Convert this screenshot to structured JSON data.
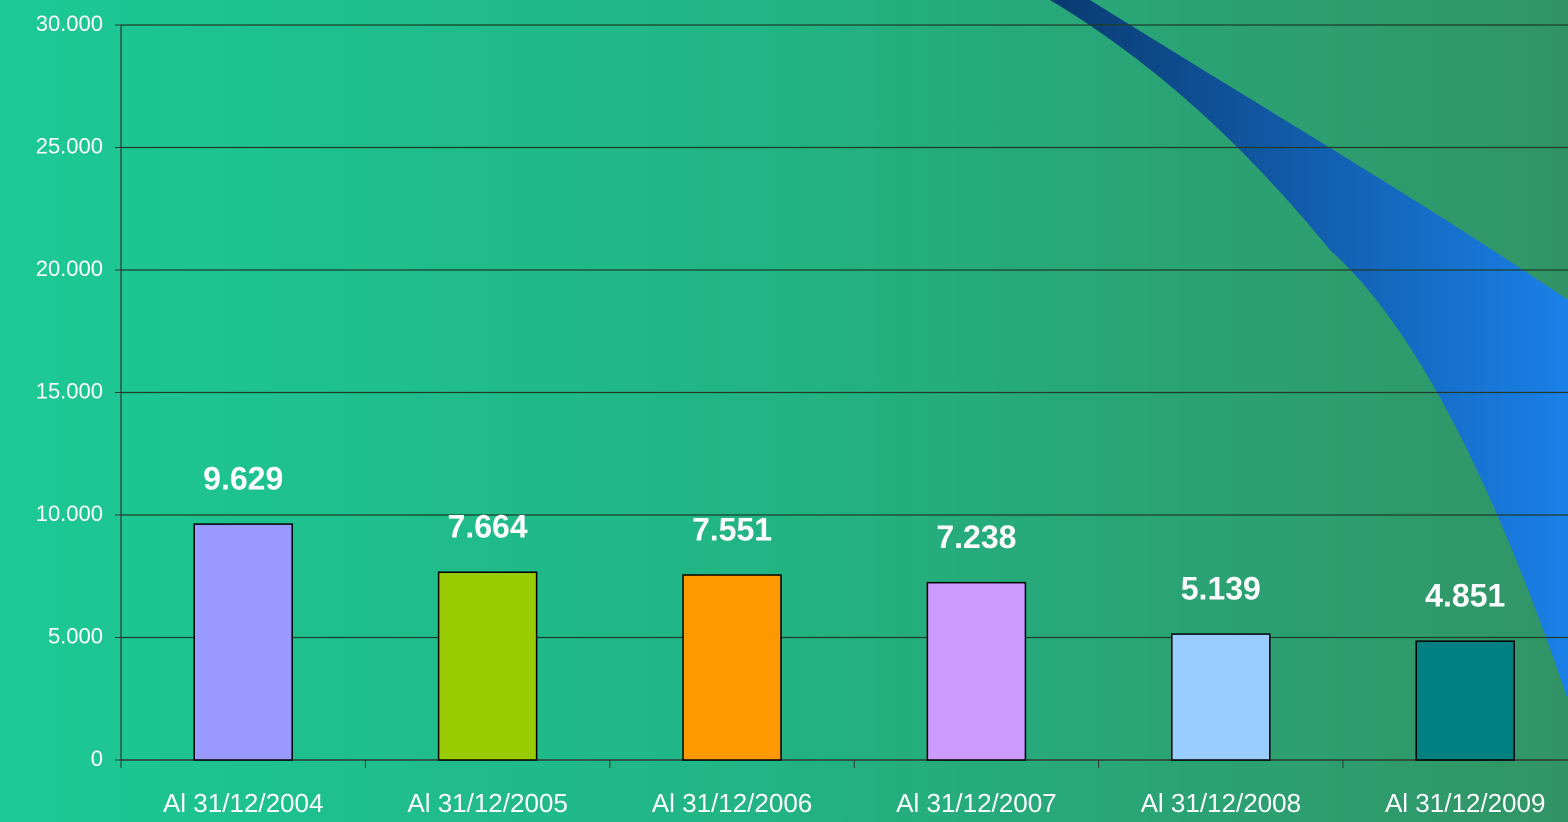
{
  "chart_data": {
    "type": "bar",
    "categories": [
      "Al 31/12/2004",
      "Al 31/12/2005",
      "Al 31/12/2006",
      "Al 31/12/2007",
      "Al 31/12/2008",
      "Al 31/12/2009"
    ],
    "values": [
      9629,
      7664,
      7551,
      7238,
      5139,
      4851
    ],
    "value_labels": [
      "9.629",
      "7.664",
      "7.551",
      "7.238",
      "5.139",
      "4.851"
    ],
    "colors": [
      "#9999ff",
      "#99cc00",
      "#ff9900",
      "#cc99ff",
      "#99ccff",
      "#008080"
    ],
    "ylim": [
      0,
      30000
    ],
    "yticks": [
      0,
      {
        "value": 5000,
        "label": "5.000"
      },
      {
        "value": 10000,
        "label": "10.000"
      },
      {
        "value": 15000,
        "label": "15.000"
      },
      {
        "value": 20000,
        "label": "20.000"
      },
      {
        "value": 25000,
        "label": "25.000"
      },
      {
        "value": 30000,
        "label": "30.000"
      }
    ],
    "grid": true
  }
}
